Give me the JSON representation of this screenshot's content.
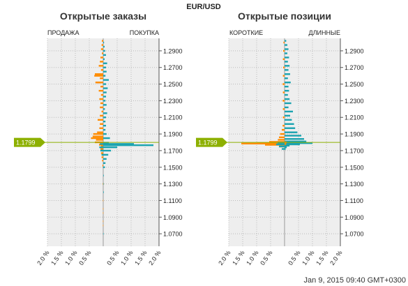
{
  "header": {
    "symbol": "EUR/USD",
    "timestamp": "Jan 9, 2015 09:40 GMT+0300"
  },
  "colors": {
    "short": "#ff8c00",
    "long": "#1aa3b0",
    "price": "#8db000",
    "plot_bg": "#eeeeee",
    "grid": "#bbbbbb"
  },
  "chart_data": [
    {
      "type": "bar",
      "orientation": "horizontal",
      "title": "Открытые заказы",
      "left_label": "ПРОДАЖА",
      "right_label": "ПОКУПКА",
      "ylim": [
        1.055,
        1.305
      ],
      "yticks": [
        "1.2900",
        "1.2700",
        "1.2500",
        "1.2300",
        "1.2100",
        "1.1900",
        "1.1700",
        "1.1500",
        "1.1300",
        "1.1100",
        "1.0900",
        "1.0700"
      ],
      "xticks": [
        "2.0 %",
        "1.5 %",
        "1.0 %",
        "0.5 %",
        "0.5 %",
        "1.0 %",
        "1.5 %",
        "2.0 %"
      ],
      "current_price": "1.1799",
      "series": [
        {
          "name": "ПРОДАЖА",
          "side": "left",
          "values": [
            [
              1.302,
              0.05
            ],
            [
              1.297,
              0.06
            ],
            [
              1.292,
              0.08
            ],
            [
              1.287,
              0.05
            ],
            [
              1.282,
              0.1
            ],
            [
              1.277,
              0.12
            ],
            [
              1.272,
              0.16
            ],
            [
              1.267,
              0.08
            ],
            [
              1.262,
              0.3
            ],
            [
              1.257,
              0.12
            ],
            [
              1.252,
              0.24
            ],
            [
              1.247,
              0.1
            ],
            [
              1.242,
              0.16
            ],
            [
              1.237,
              0.08
            ],
            [
              1.232,
              0.14
            ],
            [
              1.227,
              0.1
            ],
            [
              1.222,
              0.12
            ],
            [
              1.217,
              0.06
            ],
            [
              1.212,
              0.12
            ],
            [
              1.207,
              0.2
            ],
            [
              1.202,
              0.12
            ],
            [
              1.197,
              0.14
            ],
            [
              1.192,
              0.22
            ],
            [
              1.187,
              0.38
            ],
            [
              1.183,
              0.26
            ],
            [
              1.176,
              0.08
            ],
            [
              1.17,
              0.06
            ],
            [
              1.165,
              0.05
            ],
            [
              1.158,
              0.04
            ],
            [
              1.152,
              0.03
            ],
            [
              1.1,
              0.01
            ],
            [
              1.085,
              0.01
            ]
          ]
        },
        {
          "name": "ПОКУПКА",
          "side": "right",
          "values": [
            [
              1.3,
              0.03
            ],
            [
              1.295,
              0.05
            ],
            [
              1.29,
              0.07
            ],
            [
              1.285,
              0.1
            ],
            [
              1.28,
              0.05
            ],
            [
              1.275,
              0.14
            ],
            [
              1.27,
              0.1
            ],
            [
              1.265,
              0.12
            ],
            [
              1.26,
              0.08
            ],
            [
              1.255,
              0.2
            ],
            [
              1.25,
              0.1
            ],
            [
              1.245,
              0.16
            ],
            [
              1.24,
              0.12
            ],
            [
              1.235,
              0.1
            ],
            [
              1.23,
              0.08
            ],
            [
              1.225,
              0.12
            ],
            [
              1.22,
              0.06
            ],
            [
              1.215,
              0.14
            ],
            [
              1.21,
              0.1
            ],
            [
              1.205,
              0.08
            ],
            [
              1.2,
              0.1
            ],
            [
              1.195,
              0.08
            ],
            [
              1.19,
              0.12
            ],
            [
              1.185,
              0.24
            ],
            [
              1.1795,
              0.2
            ],
            [
              1.178,
              1.1
            ],
            [
              1.1765,
              1.8
            ],
            [
              1.174,
              0.5
            ],
            [
              1.17,
              0.28
            ],
            [
              1.165,
              0.18
            ],
            [
              1.16,
              0.12
            ],
            [
              1.155,
              0.08
            ],
            [
              1.15,
              0.06
            ],
            [
              1.14,
              0.02
            ],
            [
              1.13,
              0.02
            ],
            [
              1.12,
              0.02
            ],
            [
              1.07,
              0.01
            ]
          ]
        },
        {
          "name": "short",
          "side": "left",
          "color_key": "short",
          "values": [
            [
              1.26,
              0.32
            ],
            [
              1.252,
              0.28
            ],
            [
              1.19,
              0.36
            ],
            [
              1.185,
              0.44
            ],
            [
              1.18,
              0.3
            ],
            [
              1.177,
              0.15
            ],
            [
              1.172,
              0.1
            ],
            [
              1.167,
              0.08
            ],
            [
              1.162,
              0.06
            ],
            [
              1.13,
              0.01
            ],
            [
              1.11,
              0.01
            ],
            [
              1.095,
              0.01
            ],
            [
              1.08,
              0.01
            ]
          ]
        },
        {
          "name": "long",
          "side": "left",
          "color_key": "long",
          "values": [
            [
              1.178,
              0.12
            ],
            [
              1.174,
              0.14
            ],
            [
              1.17,
              0.1
            ],
            [
              1.165,
              0.06
            ]
          ]
        }
      ]
    },
    {
      "type": "bar",
      "orientation": "horizontal",
      "title": "Открытые позиции",
      "left_label": "КОРОТКИЕ",
      "right_label": "ДЛИННЫЕ",
      "ylim": [
        1.055,
        1.305
      ],
      "yticks": [
        "1.2900",
        "1.2700",
        "1.2500",
        "1.2300",
        "1.2100",
        "1.1900",
        "1.1700",
        "1.1500",
        "1.1300",
        "1.1100",
        "1.0900",
        "1.0700"
      ],
      "xticks": [
        "2.0 %",
        "1.5 %",
        "1.0 %",
        "0.5 %",
        "0.5 %",
        "1.0 %",
        "1.5 %",
        "2.0 %"
      ],
      "current_price": "1.1799",
      "series": [
        {
          "name": "КОРОТКИЕ",
          "side": "left",
          "values": [
            [
              1.3,
              0.04
            ],
            [
              1.29,
              0.05
            ],
            [
              1.28,
              0.06
            ],
            [
              1.27,
              0.05
            ],
            [
              1.26,
              0.06
            ],
            [
              1.25,
              0.07
            ],
            [
              1.24,
              0.06
            ],
            [
              1.23,
              0.07
            ],
            [
              1.22,
              0.06
            ],
            [
              1.21,
              0.06
            ],
            [
              1.2,
              0.07
            ],
            [
              1.195,
              0.1
            ],
            [
              1.19,
              0.16
            ],
            [
              1.186,
              0.2
            ],
            [
              1.183,
              0.24
            ],
            [
              1.1805,
              0.55
            ],
            [
              1.179,
              1.0
            ],
            [
              1.1785,
              1.55
            ],
            [
              1.177,
              0.7
            ],
            [
              1.175,
              0.2
            ]
          ]
        },
        {
          "name": "ДЛИННЫЕ",
          "side": "right",
          "values": [
            [
              1.302,
              0.06
            ],
            [
              1.297,
              0.1
            ],
            [
              1.292,
              0.14
            ],
            [
              1.287,
              0.1
            ],
            [
              1.282,
              0.16
            ],
            [
              1.277,
              0.12
            ],
            [
              1.272,
              0.18
            ],
            [
              1.267,
              0.14
            ],
            [
              1.262,
              0.2
            ],
            [
              1.257,
              0.12
            ],
            [
              1.252,
              0.22
            ],
            [
              1.247,
              0.14
            ],
            [
              1.242,
              0.16
            ],
            [
              1.237,
              0.12
            ],
            [
              1.232,
              0.18
            ],
            [
              1.227,
              0.24
            ],
            [
              1.222,
              0.14
            ],
            [
              1.217,
              0.3
            ],
            [
              1.212,
              0.2
            ],
            [
              1.207,
              0.26
            ],
            [
              1.202,
              0.34
            ],
            [
              1.197,
              0.38
            ],
            [
              1.192,
              0.46
            ],
            [
              1.188,
              0.6
            ],
            [
              1.184,
              0.7
            ],
            [
              1.181,
              0.78
            ],
            [
              1.179,
              1.0
            ],
            [
              1.1775,
              0.55
            ],
            [
              1.176,
              0.18
            ],
            [
              1.174,
              0.08
            ],
            [
              1.172,
              0.04
            ]
          ]
        },
        {
          "name": "short",
          "side": "right",
          "color_key": "short",
          "values": [
            [
              1.18,
              0.08
            ],
            [
              1.178,
              0.06
            ]
          ]
        },
        {
          "name": "long",
          "side": "left",
          "color_key": "long",
          "values": [
            [
              1.1795,
              0.25
            ],
            [
              1.1775,
              0.3
            ],
            [
              1.175,
              0.2
            ],
            [
              1.172,
              0.1
            ]
          ]
        }
      ]
    }
  ]
}
